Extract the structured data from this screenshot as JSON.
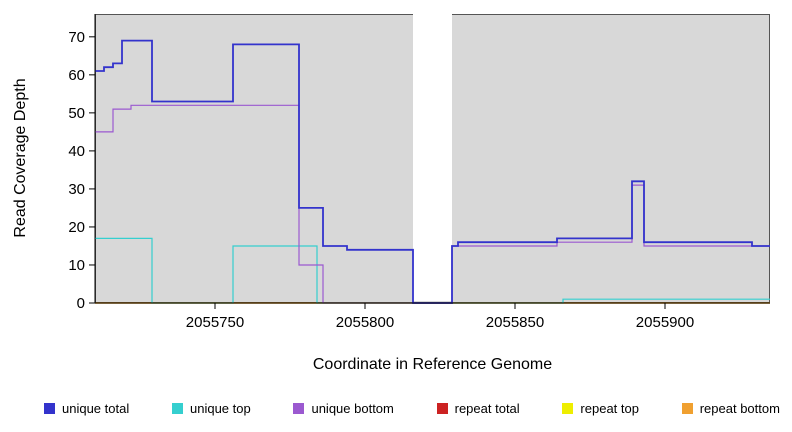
{
  "chart_data": {
    "type": "line",
    "title": "",
    "xlabel": "Coordinate in Reference Genome",
    "ylabel": "Read Coverage Depth",
    "xlim": [
      2055710,
      2055935
    ],
    "ylim": [
      0,
      76
    ],
    "xticks": [
      2055750,
      2055800,
      2055850,
      2055900
    ],
    "yticks": [
      0,
      10,
      20,
      30,
      40,
      50,
      60,
      70
    ],
    "grid": false,
    "legend_position": "bottom",
    "panel_background": "#d8d8d8",
    "gap_region": {
      "from": 2055816,
      "to": 2055829
    },
    "series": [
      {
        "name": "repeat total",
        "color": "#cc2222",
        "step": true,
        "points": [
          [
            2055710,
            0
          ],
          [
            2055935,
            0
          ]
        ]
      },
      {
        "name": "repeat top",
        "color": "#eeee00",
        "step": true,
        "points": [
          [
            2055710,
            0
          ],
          [
            2055935,
            0
          ]
        ]
      },
      {
        "name": "repeat bottom",
        "color": "#f0a030",
        "step": true,
        "points": [
          [
            2055710,
            0
          ],
          [
            2055935,
            0
          ]
        ]
      },
      {
        "name": "unique top",
        "color": "#35cfcf",
        "step": true,
        "points": [
          [
            2055710,
            17
          ],
          [
            2055729,
            0
          ],
          [
            2055756,
            15
          ],
          [
            2055784,
            0
          ],
          [
            2055866,
            1
          ],
          [
            2055935,
            1
          ]
        ]
      },
      {
        "name": "unique bottom",
        "color": "#9b59d0",
        "step": true,
        "points": [
          [
            2055710,
            45
          ],
          [
            2055716,
            51
          ],
          [
            2055722,
            52
          ],
          [
            2055778,
            10
          ],
          [
            2055786,
            0
          ],
          [
            2055829,
            15
          ],
          [
            2055864,
            16
          ],
          [
            2055889,
            31
          ],
          [
            2055893,
            15
          ],
          [
            2055935,
            15
          ]
        ]
      },
      {
        "name": "unique total",
        "color": "#3333cc",
        "step": true,
        "points": [
          [
            2055710,
            61
          ],
          [
            2055713,
            62
          ],
          [
            2055716,
            63
          ],
          [
            2055719,
            69
          ],
          [
            2055729,
            53
          ],
          [
            2055756,
            68
          ],
          [
            2055778,
            25
          ],
          [
            2055786,
            15
          ],
          [
            2055794,
            14
          ],
          [
            2055816,
            0
          ],
          [
            2055829,
            15
          ],
          [
            2055831,
            16
          ],
          [
            2055864,
            17
          ],
          [
            2055889,
            32
          ],
          [
            2055893,
            16
          ],
          [
            2055929,
            15
          ],
          [
            2055935,
            15
          ]
        ]
      }
    ],
    "legend": [
      {
        "label": "unique total",
        "color": "#3333cc"
      },
      {
        "label": "unique top",
        "color": "#35cfcf"
      },
      {
        "label": "unique bottom",
        "color": "#9b59d0"
      },
      {
        "label": "repeat total",
        "color": "#cc2222"
      },
      {
        "label": "repeat top",
        "color": "#eeee00"
      },
      {
        "label": "repeat bottom",
        "color": "#f0a030"
      }
    ]
  }
}
